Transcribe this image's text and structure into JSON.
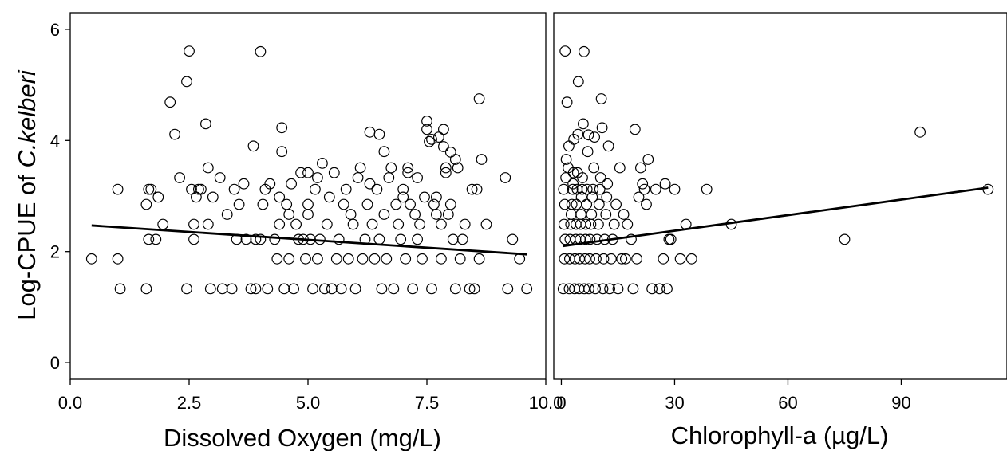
{
  "chart_data": [
    {
      "type": "scatter",
      "title": "",
      "xlabel": "Dissolved Oxygen (mg/L)",
      "ylabel_prefix": "Log-CPUE of ",
      "ylabel_species": "C.kelberi",
      "xlim": [
        0,
        10
      ],
      "ylim": [
        -0.3,
        6.3
      ],
      "xticks": [
        0,
        2.5,
        5,
        7.5,
        10
      ],
      "xtick_labels": [
        "0.0",
        "2.5",
        "5.0",
        "7.5",
        "10.0"
      ],
      "yticks": [
        0,
        2,
        4,
        6
      ],
      "ytick_labels": [
        "0",
        "2",
        "4",
        "6"
      ],
      "grid": false,
      "fit_line": {
        "x": [
          0.45,
          9.6
        ],
        "y": [
          2.47,
          1.95
        ]
      },
      "points": [
        [
          0.45,
          1.87
        ],
        [
          1.0,
          1.87
        ],
        [
          1.05,
          1.33
        ],
        [
          1.0,
          3.12
        ],
        [
          1.6,
          1.33
        ],
        [
          1.6,
          2.85
        ],
        [
          1.65,
          3.12
        ],
        [
          1.7,
          3.12
        ],
        [
          1.65,
          2.22
        ],
        [
          1.8,
          2.22
        ],
        [
          1.85,
          2.98
        ],
        [
          1.95,
          2.49
        ],
        [
          2.1,
          4.69
        ],
        [
          2.2,
          4.11
        ],
        [
          2.3,
          3.33
        ],
        [
          2.45,
          5.06
        ],
        [
          2.5,
          5.61
        ],
        [
          2.45,
          1.33
        ],
        [
          2.55,
          3.12
        ],
        [
          2.6,
          2.49
        ],
        [
          2.65,
          2.98
        ],
        [
          2.6,
          2.22
        ],
        [
          2.7,
          3.12
        ],
        [
          2.75,
          3.12
        ],
        [
          2.85,
          4.3
        ],
        [
          2.9,
          3.51
        ],
        [
          2.9,
          2.49
        ],
        [
          2.95,
          1.33
        ],
        [
          3.0,
          2.98
        ],
        [
          3.15,
          3.33
        ],
        [
          3.2,
          1.33
        ],
        [
          3.3,
          2.67
        ],
        [
          3.4,
          1.33
        ],
        [
          3.45,
          3.12
        ],
        [
          3.5,
          2.22
        ],
        [
          3.55,
          2.85
        ],
        [
          3.65,
          3.22
        ],
        [
          3.7,
          2.22
        ],
        [
          3.8,
          1.33
        ],
        [
          3.85,
          3.9
        ],
        [
          3.9,
          1.33
        ],
        [
          3.9,
          2.22
        ],
        [
          4.0,
          2.22
        ],
        [
          4.0,
          5.6
        ],
        [
          4.05,
          2.85
        ],
        [
          4.1,
          3.12
        ],
        [
          4.15,
          1.33
        ],
        [
          4.2,
          3.22
        ],
        [
          4.3,
          2.22
        ],
        [
          4.35,
          1.87
        ],
        [
          4.4,
          2.49
        ],
        [
          4.4,
          2.98
        ],
        [
          4.45,
          4.23
        ],
        [
          4.45,
          3.8
        ],
        [
          4.5,
          1.33
        ],
        [
          4.55,
          2.85
        ],
        [
          4.6,
          1.87
        ],
        [
          4.6,
          2.67
        ],
        [
          4.65,
          3.22
        ],
        [
          4.7,
          1.33
        ],
        [
          4.75,
          2.49
        ],
        [
          4.8,
          2.22
        ],
        [
          4.85,
          3.42
        ],
        [
          4.9,
          2.22
        ],
        [
          4.95,
          1.87
        ],
        [
          5.0,
          2.85
        ],
        [
          5.0,
          2.67
        ],
        [
          5.0,
          3.42
        ],
        [
          5.05,
          2.22
        ],
        [
          5.1,
          1.33
        ],
        [
          5.15,
          3.12
        ],
        [
          5.2,
          1.87
        ],
        [
          5.2,
          3.33
        ],
        [
          5.25,
          2.22
        ],
        [
          5.3,
          3.59
        ],
        [
          5.35,
          1.33
        ],
        [
          5.4,
          2.49
        ],
        [
          5.45,
          2.98
        ],
        [
          5.5,
          1.33
        ],
        [
          5.55,
          3.42
        ],
        [
          5.6,
          1.87
        ],
        [
          5.65,
          2.22
        ],
        [
          5.7,
          1.33
        ],
        [
          5.75,
          2.85
        ],
        [
          5.8,
          3.12
        ],
        [
          5.85,
          1.87
        ],
        [
          5.9,
          2.67
        ],
        [
          5.95,
          2.49
        ],
        [
          6.0,
          1.33
        ],
        [
          6.05,
          3.33
        ],
        [
          6.1,
          3.51
        ],
        [
          6.15,
          1.87
        ],
        [
          6.2,
          2.22
        ],
        [
          6.25,
          2.85
        ],
        [
          6.3,
          4.15
        ],
        [
          6.3,
          3.22
        ],
        [
          6.35,
          2.49
        ],
        [
          6.4,
          1.87
        ],
        [
          6.45,
          3.12
        ],
        [
          6.5,
          2.22
        ],
        [
          6.5,
          4.11
        ],
        [
          6.55,
          1.33
        ],
        [
          6.6,
          2.67
        ],
        [
          6.6,
          3.8
        ],
        [
          6.65,
          1.87
        ],
        [
          6.7,
          3.33
        ],
        [
          6.75,
          3.51
        ],
        [
          6.8,
          1.33
        ],
        [
          6.85,
          2.85
        ],
        [
          6.9,
          2.49
        ],
        [
          6.95,
          2.22
        ],
        [
          7.0,
          3.12
        ],
        [
          7.0,
          2.98
        ],
        [
          7.05,
          1.87
        ],
        [
          7.1,
          3.51
        ],
        [
          7.1,
          3.42
        ],
        [
          7.15,
          2.85
        ],
        [
          7.2,
          1.33
        ],
        [
          7.25,
          2.67
        ],
        [
          7.3,
          2.22
        ],
        [
          7.3,
          3.33
        ],
        [
          7.35,
          2.49
        ],
        [
          7.4,
          1.87
        ],
        [
          7.45,
          2.98
        ],
        [
          7.5,
          4.2
        ],
        [
          7.5,
          4.35
        ],
        [
          7.55,
          3.98
        ],
        [
          7.6,
          1.33
        ],
        [
          7.6,
          4.02
        ],
        [
          7.65,
          2.85
        ],
        [
          7.7,
          2.67
        ],
        [
          7.7,
          2.98
        ],
        [
          7.75,
          4.06
        ],
        [
          7.8,
          1.87
        ],
        [
          7.8,
          2.49
        ],
        [
          7.85,
          3.89
        ],
        [
          7.85,
          4.2
        ],
        [
          7.9,
          3.51
        ],
        [
          7.9,
          3.42
        ],
        [
          7.95,
          2.67
        ],
        [
          8.0,
          2.85
        ],
        [
          8.0,
          3.79
        ],
        [
          8.05,
          2.22
        ],
        [
          8.1,
          3.66
        ],
        [
          8.1,
          1.33
        ],
        [
          8.15,
          3.51
        ],
        [
          8.2,
          1.87
        ],
        [
          8.25,
          2.22
        ],
        [
          8.3,
          2.49
        ],
        [
          8.4,
          1.33
        ],
        [
          8.45,
          3.12
        ],
        [
          8.5,
          1.33
        ],
        [
          8.55,
          3.12
        ],
        [
          8.6,
          1.87
        ],
        [
          8.6,
          4.75
        ],
        [
          8.65,
          3.66
        ],
        [
          8.75,
          2.49
        ],
        [
          9.15,
          3.33
        ],
        [
          9.2,
          1.33
        ],
        [
          9.3,
          2.22
        ],
        [
          9.45,
          1.87
        ],
        [
          9.6,
          1.33
        ]
      ]
    },
    {
      "type": "scatter",
      "title": "",
      "xlabel": "Chlorophyll-a (µg/L)",
      "ylabel_prefix": "",
      "ylabel_species": "",
      "xlim": [
        -2,
        118
      ],
      "ylim": [
        -0.3,
        6.3
      ],
      "xticks": [
        0,
        30,
        60,
        90
      ],
      "xtick_labels": [
        "0",
        "30",
        "60",
        "90"
      ],
      "yticks": [],
      "ytick_labels": [],
      "grid": false,
      "fit_line": {
        "x": [
          0.5,
          113
        ],
        "y": [
          2.1,
          3.15
        ]
      },
      "points": [
        [
          0.5,
          1.33
        ],
        [
          0.8,
          1.87
        ],
        [
          1.0,
          2.22
        ],
        [
          0.7,
          2.49
        ],
        [
          0.9,
          2.85
        ],
        [
          0.6,
          3.12
        ],
        [
          1.2,
          3.33
        ],
        [
          1.3,
          3.66
        ],
        [
          1.5,
          4.69
        ],
        [
          1.0,
          5.61
        ],
        [
          1.8,
          3.51
        ],
        [
          2.0,
          3.9
        ],
        [
          2.1,
          1.33
        ],
        [
          2.2,
          1.87
        ],
        [
          2.3,
          2.22
        ],
        [
          2.5,
          2.49
        ],
        [
          2.6,
          2.67
        ],
        [
          2.8,
          2.85
        ],
        [
          3.0,
          3.12
        ],
        [
          3.1,
          3.22
        ],
        [
          3.2,
          3.42
        ],
        [
          3.3,
          4.02
        ],
        [
          3.5,
          1.33
        ],
        [
          3.6,
          1.87
        ],
        [
          3.8,
          2.22
        ],
        [
          3.9,
          2.49
        ],
        [
          4.0,
          2.85
        ],
        [
          4.2,
          3.12
        ],
        [
          4.3,
          3.42
        ],
        [
          4.4,
          4.11
        ],
        [
          4.5,
          5.06
        ],
        [
          4.7,
          1.33
        ],
        [
          4.8,
          1.87
        ],
        [
          5.0,
          2.22
        ],
        [
          5.1,
          2.49
        ],
        [
          5.2,
          2.67
        ],
        [
          5.3,
          2.98
        ],
        [
          5.5,
          3.12
        ],
        [
          5.6,
          3.33
        ],
        [
          5.8,
          4.3
        ],
        [
          6.0,
          5.6
        ],
        [
          6.1,
          1.33
        ],
        [
          6.3,
          1.87
        ],
        [
          6.4,
          2.22
        ],
        [
          6.5,
          2.49
        ],
        [
          6.7,
          2.85
        ],
        [
          6.8,
          3.12
        ],
        [
          7.0,
          3.8
        ],
        [
          7.2,
          4.1
        ],
        [
          7.3,
          1.33
        ],
        [
          7.5,
          1.87
        ],
        [
          7.6,
          2.22
        ],
        [
          7.8,
          2.49
        ],
        [
          8.0,
          2.67
        ],
        [
          8.2,
          2.98
        ],
        [
          8.4,
          3.12
        ],
        [
          8.6,
          3.51
        ],
        [
          8.8,
          4.06
        ],
        [
          9.0,
          1.33
        ],
        [
          9.2,
          1.87
        ],
        [
          9.5,
          2.22
        ],
        [
          9.8,
          2.49
        ],
        [
          10.0,
          2.85
        ],
        [
          10.2,
          3.12
        ],
        [
          10.4,
          3.33
        ],
        [
          10.6,
          4.75
        ],
        [
          10.8,
          4.23
        ],
        [
          11.0,
          1.33
        ],
        [
          11.2,
          1.87
        ],
        [
          11.5,
          2.22
        ],
        [
          11.8,
          2.67
        ],
        [
          12.0,
          2.98
        ],
        [
          12.2,
          3.22
        ],
        [
          12.5,
          3.9
        ],
        [
          12.8,
          1.33
        ],
        [
          13.2,
          1.87
        ],
        [
          13.6,
          2.22
        ],
        [
          14.0,
          2.49
        ],
        [
          14.5,
          2.85
        ],
        [
          15.0,
          1.33
        ],
        [
          15.5,
          3.51
        ],
        [
          16.0,
          1.87
        ],
        [
          16.5,
          2.67
        ],
        [
          17.0,
          1.87
        ],
        [
          17.5,
          2.49
        ],
        [
          18.5,
          2.22
        ],
        [
          19.0,
          1.33
        ],
        [
          19.5,
          4.2
        ],
        [
          20.0,
          1.87
        ],
        [
          20.5,
          2.98
        ],
        [
          21.0,
          3.51
        ],
        [
          21.5,
          3.22
        ],
        [
          22.0,
          3.12
        ],
        [
          22.5,
          2.85
        ],
        [
          23.0,
          3.66
        ],
        [
          24.0,
          1.33
        ],
        [
          25.0,
          3.12
        ],
        [
          26.0,
          1.33
        ],
        [
          27.0,
          1.87
        ],
        [
          27.5,
          3.22
        ],
        [
          28.0,
          1.33
        ],
        [
          28.5,
          2.22
        ],
        [
          29.0,
          2.22
        ],
        [
          30.0,
          3.12
        ],
        [
          31.5,
          1.87
        ],
        [
          33.0,
          2.49
        ],
        [
          34.5,
          1.87
        ],
        [
          38.5,
          3.12
        ],
        [
          45.0,
          2.49
        ],
        [
          75.0,
          2.22
        ],
        [
          95.0,
          4.15
        ],
        [
          113.0,
          3.12
        ]
      ]
    }
  ]
}
